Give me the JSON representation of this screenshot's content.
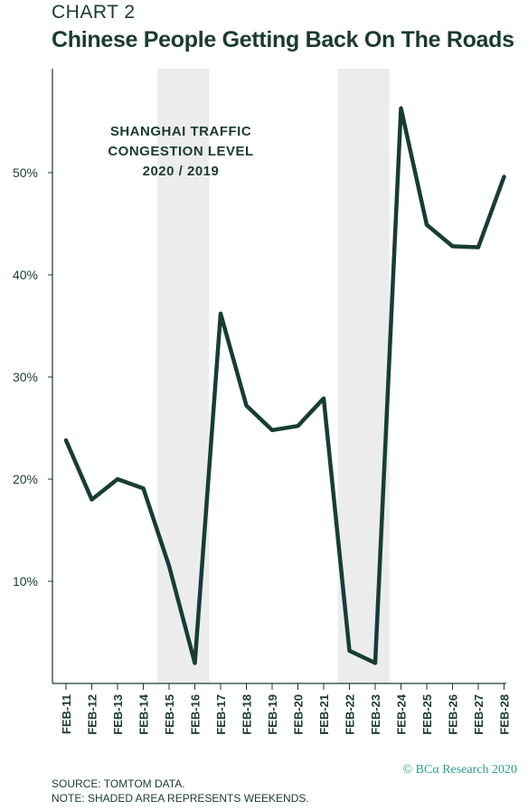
{
  "header": {
    "kicker": "CHART 2",
    "title": "Chinese People Getting Back On The Roads"
  },
  "footer": {
    "source": "SOURCE: TOMTOM DATA.",
    "note": "NOTE: SHADED AREA REPRESENTS WEEKENDS.",
    "brand": "© BCα Research 2020"
  },
  "colors": {
    "line": "#173d35",
    "shade": "#ececec",
    "text": "#1b3a33",
    "brand": "#2e9e8c"
  },
  "chart_data": {
    "type": "line",
    "title": "Chinese People Getting Back On The Roads",
    "annotation": [
      "SHANGHAI TRAFFIC",
      "CONGESTION LEVEL",
      "2020 / 2019"
    ],
    "categories": [
      "FEB-11",
      "FEB-12",
      "FEB-13",
      "FEB-14",
      "FEB-15",
      "FEB-16",
      "FEB-17",
      "FEB-18",
      "FEB-19",
      "FEB-20",
      "FEB-21",
      "FEB-22",
      "FEB-23",
      "FEB-24",
      "FEB-25",
      "FEB-26",
      "FEB-27",
      "FEB-28"
    ],
    "series": [
      {
        "values": [
          23.8,
          18.0,
          20.0,
          19.1,
          11.5,
          2.0,
          36.2,
          27.2,
          24.8,
          25.2,
          27.9,
          3.2,
          2.0,
          56.3,
          44.9,
          42.8,
          42.7,
          49.6
        ]
      }
    ],
    "y_ticks": [
      10,
      20,
      30,
      40,
      50
    ],
    "y_tick_labels": [
      "10%",
      "20%",
      "30%",
      "40%",
      "50%"
    ],
    "ylim": [
      0,
      61
    ],
    "shaded_ranges": [
      [
        "FEB-15",
        "FEB-16"
      ],
      [
        "FEB-22",
        "FEB-23"
      ]
    ],
    "xlabel": "",
    "ylabel": "",
    "grid": false,
    "legend": "none"
  }
}
